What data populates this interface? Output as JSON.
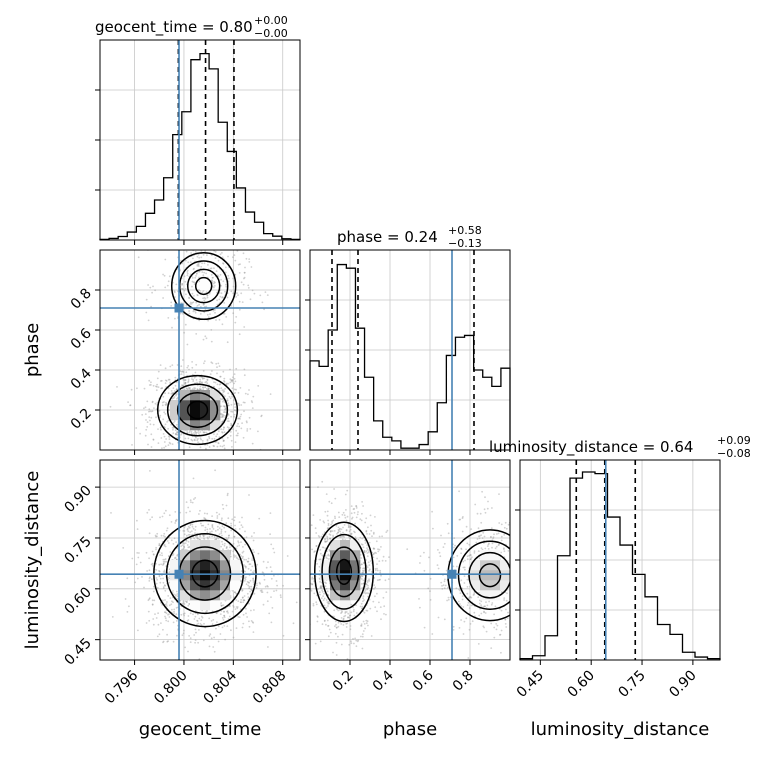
{
  "chart_data": {
    "type": "corner",
    "parameters": [
      "geocent_time",
      "phase",
      "luminosity_distance"
    ],
    "titles": [
      {
        "param": "geocent_time",
        "label": "geocent_time = 0.80",
        "plus": "+0.00",
        "minus": "−0.00"
      },
      {
        "param": "phase",
        "label": "phase = 0.24",
        "plus": "+0.58",
        "minus": "−0.13"
      },
      {
        "param": "luminosity_distance",
        "label": "luminosity_distance = 0.64",
        "plus": "+0.09",
        "minus": "−0.08"
      }
    ],
    "axis_labels": {
      "x": [
        "geocent_time",
        "phase",
        "luminosity_distance"
      ],
      "y": [
        "phase",
        "luminosity_distance"
      ]
    },
    "ranges": {
      "geocent_time": [
        0.7932,
        0.8094
      ],
      "phase": [
        0.0,
        1.0
      ],
      "luminosity_distance": [
        0.39,
        0.98
      ]
    },
    "ticks": {
      "geocent_time": {
        "values": [
          0.796,
          0.8,
          0.804,
          0.808
        ],
        "labels": [
          "0.796",
          "0.800",
          "0.804",
          "0.808"
        ]
      },
      "phase": {
        "values": [
          0.2,
          0.4,
          0.6,
          0.8
        ],
        "labels": [
          "0.2",
          "0.4",
          "0.6",
          "0.8"
        ]
      },
      "luminosity_distance": {
        "values": [
          0.45,
          0.6,
          0.75,
          0.9
        ],
        "labels": [
          "0.45",
          "0.60",
          "0.75",
          "0.90"
        ]
      }
    },
    "truths": {
      "geocent_time": 0.7996,
      "phase": 0.71,
      "luminosity_distance": 0.643
    },
    "quantiles": {
      "geocent_time": [
        0.79955,
        0.80175,
        0.80405
      ],
      "phase": [
        0.11,
        0.24,
        0.82
      ],
      "luminosity_distance": [
        0.556,
        0.64,
        0.73
      ]
    },
    "hist1d": {
      "geocent_time": [
        0.2,
        0.5,
        1.1,
        2.5,
        4.3,
        8.4,
        12.6,
        19.6,
        33.2,
        40.4,
        56.8,
        58.7,
        53.9,
        37.1,
        27.9,
        16.4,
        8.8,
        5.6,
        2.0,
        1.2,
        0.4,
        0.2
      ],
      "phase": [
        49,
        46,
        66,
        102,
        100,
        67,
        40,
        16,
        7,
        5,
        1,
        1,
        3,
        10,
        26,
        52,
        62,
        63,
        44,
        40,
        35,
        45
      ],
      "luminosity_distance": [
        0.5,
        1.6,
        9.1,
        39.1,
        68.2,
        70.5,
        69.9,
        53.6,
        43.1,
        32.1,
        23.7,
        13.3,
        9.6,
        2.9,
        1.1,
        0.5
      ]
    },
    "hist1d_ymax": {
      "geocent_time": 63,
      "phase": 110,
      "luminosity_distance": 75
    },
    "modes": {
      "geocent_time/phase": [
        {
          "cx": 0.8011,
          "cy": 0.2,
          "sx": 0.0015,
          "sy": 0.08,
          "w": 0.75
        },
        {
          "cx": 0.8016,
          "cy": 0.82,
          "sx": 0.0014,
          "sy": 0.09,
          "w": 0.25
        }
      ],
      "geocent_time/luminosity_distance": [
        {
          "cx": 0.8017,
          "cy": 0.645,
          "sx": 0.0018,
          "sy": 0.068,
          "w": 1.0
        }
      ],
      "phase/luminosity_distance": [
        {
          "cx": 0.17,
          "cy": 0.65,
          "sx": 0.07,
          "sy": 0.07,
          "w": 0.65
        },
        {
          "cx": 0.9,
          "cy": 0.64,
          "sx": 0.11,
          "sy": 0.07,
          "w": 0.35
        }
      ]
    }
  }
}
